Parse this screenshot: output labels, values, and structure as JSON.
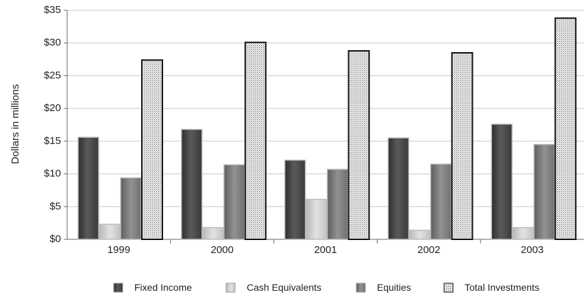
{
  "chart_data": {
    "type": "bar",
    "title": "",
    "xlabel": "",
    "ylabel": "Dollars in millions",
    "ylim": [
      0,
      35
    ],
    "yticks": [
      0,
      5,
      10,
      15,
      20,
      25,
      30,
      35
    ],
    "ytick_labels": [
      "$0",
      "$5",
      "$10",
      "$15",
      "$20",
      "$25",
      "$30",
      "$35"
    ],
    "grid": true,
    "legend_position": "bottom",
    "categories": [
      "1999",
      "2000",
      "2001",
      "2002",
      "2003"
    ],
    "series": [
      {
        "name": "Fixed Income",
        "values": [
          15.6,
          16.8,
          12.1,
          15.5,
          17.6
        ],
        "color": "#555555"
      },
      {
        "name": "Cash Equivalents",
        "values": [
          2.3,
          1.8,
          6.1,
          1.4,
          1.8
        ],
        "color": "#cccccc"
      },
      {
        "name": "Equities",
        "values": [
          9.4,
          11.4,
          10.7,
          11.5,
          14.5
        ],
        "color": "#888888"
      },
      {
        "name": "Total Investments",
        "values": [
          27.4,
          30.1,
          28.8,
          28.5,
          33.8
        ],
        "color": "#eeeeee"
      }
    ]
  }
}
